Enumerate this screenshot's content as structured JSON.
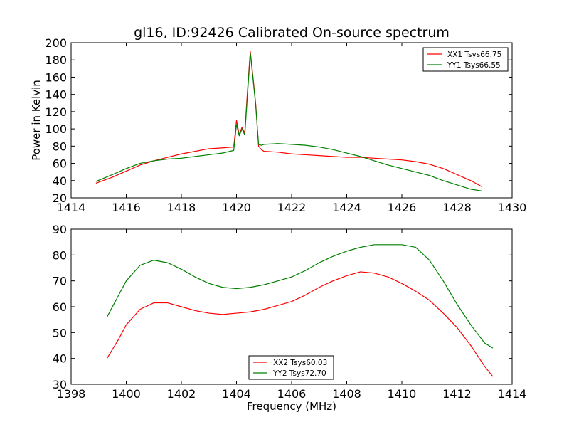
{
  "chart_data": [
    {
      "type": "line",
      "title": "gl16, ID:92426 Calibrated On-source spectrum",
      "xlabel": "",
      "ylabel": "Power in Kelvin",
      "xlim": [
        1414,
        1430
      ],
      "ylim": [
        20,
        200
      ],
      "x_ticks": [
        "1414",
        "1416",
        "1418",
        "1420",
        "1422",
        "1424",
        "1426",
        "1428",
        "1430"
      ],
      "y_ticks": [
        "20",
        "40",
        "60",
        "80",
        "100",
        "120",
        "140",
        "160",
        "180",
        "200"
      ],
      "legend_position": "top-right",
      "series": [
        {
          "name": "XX1 Tsys66.75",
          "color": "#ff0000",
          "x": [
            1414.9,
            1415.5,
            1416.0,
            1416.5,
            1417.0,
            1417.5,
            1418.0,
            1418.5,
            1419.0,
            1419.5,
            1419.9,
            1420.0,
            1420.1,
            1420.2,
            1420.3,
            1420.4,
            1420.5,
            1420.6,
            1420.7,
            1420.8,
            1420.9,
            1421.0,
            1421.5,
            1422.0,
            1422.5,
            1423.0,
            1423.5,
            1424.0,
            1424.5,
            1425.0,
            1425.5,
            1426.0,
            1426.5,
            1427.0,
            1427.5,
            1428.0,
            1428.5,
            1428.9
          ],
          "y": [
            37,
            44,
            51,
            58,
            63,
            67,
            71,
            74,
            77,
            78,
            79,
            110,
            93,
            102,
            95,
            145,
            190,
            160,
            128,
            80,
            76,
            74,
            73,
            71,
            70,
            69,
            68,
            67,
            67,
            66,
            65,
            64,
            62,
            59,
            54,
            47,
            40,
            33
          ]
        },
        {
          "name": "YY1 Tsys66.55",
          "color": "#008000",
          "x": [
            1414.9,
            1415.5,
            1416.0,
            1416.5,
            1417.0,
            1417.5,
            1418.0,
            1418.5,
            1419.0,
            1419.5,
            1419.9,
            1420.0,
            1420.1,
            1420.2,
            1420.3,
            1420.4,
            1420.5,
            1420.6,
            1420.7,
            1420.8,
            1420.9,
            1421.0,
            1421.5,
            1422.0,
            1422.5,
            1423.0,
            1423.5,
            1424.0,
            1424.5,
            1425.0,
            1425.5,
            1426.0,
            1426.5,
            1427.0,
            1427.5,
            1428.0,
            1428.5,
            1428.9
          ],
          "y": [
            39,
            47,
            54,
            60,
            63,
            65,
            66,
            68,
            70,
            72,
            75,
            105,
            92,
            100,
            93,
            140,
            188,
            158,
            126,
            82,
            81,
            82,
            83,
            82,
            81,
            79,
            76,
            72,
            68,
            63,
            58,
            54,
            50,
            46,
            40,
            35,
            30,
            28
          ]
        }
      ]
    },
    {
      "type": "line",
      "title": "",
      "xlabel": "Frequency (MHz)",
      "ylabel": "",
      "xlim": [
        1398,
        1414
      ],
      "ylim": [
        30,
        90
      ],
      "x_ticks": [
        "1398",
        "1400",
        "1402",
        "1404",
        "1406",
        "1408",
        "1410",
        "1412",
        "1414"
      ],
      "y_ticks": [
        "30",
        "40",
        "50",
        "60",
        "70",
        "80",
        "90"
      ],
      "legend_position": "bottom-center",
      "series": [
        {
          "name": "XX2 Tsys60.03",
          "color": "#ff0000",
          "x": [
            1399.3,
            1399.7,
            1400.0,
            1400.5,
            1401.0,
            1401.5,
            1402.0,
            1402.5,
            1403.0,
            1403.5,
            1404.0,
            1404.5,
            1405.0,
            1405.5,
            1406.0,
            1406.5,
            1407.0,
            1407.5,
            1408.0,
            1408.5,
            1409.0,
            1409.5,
            1410.0,
            1410.5,
            1411.0,
            1411.5,
            1412.0,
            1412.5,
            1413.0,
            1413.3
          ],
          "y": [
            40,
            47,
            53,
            59,
            61.5,
            61.5,
            60,
            58.5,
            57.5,
            57,
            57.5,
            58,
            59,
            60.5,
            62,
            64.5,
            67.5,
            70,
            72,
            73.5,
            73,
            71.5,
            69,
            66,
            62.5,
            57.5,
            52,
            45,
            37,
            33
          ]
        },
        {
          "name": "YY2 Tsys72.70",
          "color": "#008000",
          "x": [
            1399.3,
            1399.7,
            1400.0,
            1400.5,
            1401.0,
            1401.5,
            1402.0,
            1402.5,
            1403.0,
            1403.5,
            1404.0,
            1404.5,
            1405.0,
            1405.5,
            1406.0,
            1406.5,
            1407.0,
            1407.5,
            1408.0,
            1408.5,
            1409.0,
            1409.5,
            1410.0,
            1410.5,
            1411.0,
            1411.5,
            1412.0,
            1412.5,
            1413.0,
            1413.3
          ],
          "y": [
            56,
            64,
            70,
            76,
            78,
            77,
            74.5,
            71.5,
            69,
            67.5,
            67,
            67.5,
            68.5,
            70,
            71.5,
            74,
            77,
            79.5,
            81.5,
            83,
            84,
            84,
            84,
            83,
            78,
            70,
            61,
            53,
            46,
            44
          ]
        }
      ]
    }
  ]
}
